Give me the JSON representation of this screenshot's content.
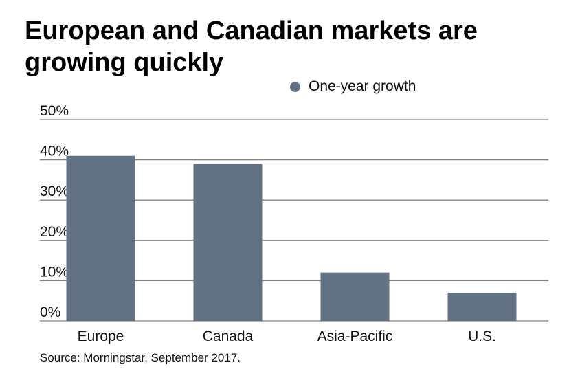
{
  "chart_data": {
    "type": "bar",
    "title": "European and Canadian markets are growing quickly",
    "categories": [
      "Europe",
      "Canada",
      "Asia-Pacific",
      "U.S."
    ],
    "series": [
      {
        "name": "One-year growth",
        "values": [
          41,
          39,
          12,
          7
        ],
        "color": "#637184"
      }
    ],
    "xlabel": "",
    "ylabel": "",
    "ylim": [
      0,
      50
    ],
    "yticks": [
      0,
      10,
      20,
      30,
      40,
      50
    ],
    "ytick_labels": [
      "0%",
      "10%",
      "20%",
      "30%",
      "40%",
      "50%"
    ],
    "grid": true,
    "legend_position": "top-right",
    "source": "Source: Morningstar, September 2017."
  }
}
